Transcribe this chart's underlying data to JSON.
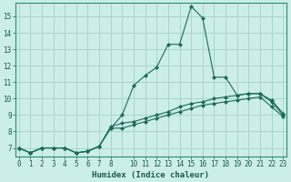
{
  "xlabel": "Humidex (Indice chaleur)",
  "bg_color": "#cceee8",
  "grid_color": "#aad4cc",
  "line_color": "#1a6b5a",
  "x": [
    0,
    1,
    2,
    3,
    4,
    5,
    6,
    7,
    8,
    9,
    10,
    11,
    12,
    13,
    14,
    15,
    16,
    17,
    18,
    19,
    20,
    21,
    22,
    23
  ],
  "line1": [
    7.0,
    6.7,
    7.0,
    7.0,
    7.0,
    6.7,
    6.8,
    7.1,
    8.3,
    8.5,
    8.6,
    8.8,
    9.0,
    9.2,
    9.5,
    9.7,
    9.8,
    10.0,
    10.1,
    10.2,
    10.3,
    10.3,
    9.9,
    9.1
  ],
  "line2": [
    7.0,
    6.7,
    7.0,
    7.0,
    7.0,
    6.7,
    6.8,
    7.1,
    8.2,
    9.0,
    10.8,
    11.4,
    11.9,
    13.3,
    13.3,
    15.6,
    14.9,
    11.3,
    11.3,
    10.2,
    10.3,
    10.3,
    9.8,
    9.0
  ],
  "line3": [
    7.0,
    6.7,
    7.0,
    7.0,
    7.0,
    6.7,
    6.8,
    7.1,
    8.2,
    8.2,
    8.4,
    8.6,
    8.8,
    9.0,
    9.2,
    9.4,
    9.6,
    9.7,
    9.8,
    9.9,
    10.0,
    10.1,
    9.5,
    8.9
  ],
  "ylim": [
    6.5,
    15.8
  ],
  "yticks": [
    7,
    8,
    9,
    10,
    11,
    12,
    13,
    14,
    15
  ],
  "xtick_positions": [
    0,
    1,
    2,
    3,
    4,
    5,
    6,
    7,
    8,
    10,
    11,
    12,
    13,
    14,
    15,
    16,
    17,
    18,
    19,
    20,
    21,
    22,
    23
  ],
  "xtick_labels": [
    "0",
    "1",
    "2",
    "3",
    "4",
    "5",
    "6",
    "7",
    "8",
    "10",
    "11",
    "12",
    "13",
    "14",
    "15",
    "16",
    "17",
    "18",
    "19",
    "20",
    "21",
    "22",
    "23"
  ]
}
